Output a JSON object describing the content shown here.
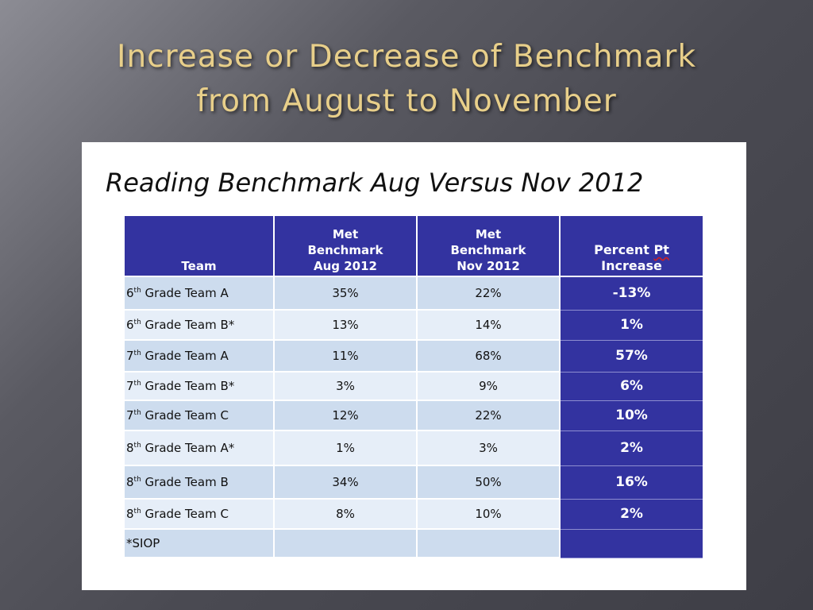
{
  "slide": {
    "title_line1": "Increase or Decrease of Benchmark",
    "title_line2": "from August to November"
  },
  "card": {
    "title": "Reading Benchmark Aug Versus Nov 2012"
  },
  "table": {
    "headers": {
      "team": "Team",
      "aug_line1": "Met",
      "aug_line2": "Benchmark",
      "aug_line3": "Aug 2012",
      "nov_line1": "Met",
      "nov_line2": "Benchmark",
      "nov_line3": "Nov 2012",
      "pct_line1_a": "Percent ",
      "pct_line1_b": "Pt",
      "pct_line2": "Increase"
    },
    "rows": [
      {
        "grade": "6",
        "sup": "th",
        "team": " Grade Team A",
        "aug": "35%",
        "nov": "22%",
        "pct": "-13%"
      },
      {
        "grade": "6",
        "sup": "th",
        "team": " Grade Team B*",
        "aug": "13%",
        "nov": "14%",
        "pct": "1%"
      },
      {
        "grade": "7",
        "sup": "th",
        "team": " Grade Team A",
        "aug": "11%",
        "nov": "68%",
        "pct": "57%"
      },
      {
        "grade": "7",
        "sup": "th",
        "team": " Grade Team B*",
        "aug": "3%",
        "nov": "9%",
        "pct": "6%"
      },
      {
        "grade": "7",
        "sup": "th",
        "team": " Grade Team C",
        "aug": "12%",
        "nov": "22%",
        "pct": "10%"
      },
      {
        "grade": "8",
        "sup": "th",
        "team": " Grade Team A*",
        "aug": "1%",
        "nov": "3%",
        "pct": "2%"
      },
      {
        "grade": "8",
        "sup": "th",
        "team": " Grade Team B",
        "aug": "34%",
        "nov": "50%",
        "pct": "16%"
      },
      {
        "grade": "8",
        "sup": "th",
        "team": " Grade Team C",
        "aug": "8%",
        "nov": "10%",
        "pct": "2%"
      }
    ],
    "footnote": "*SIOP"
  },
  "colors": {
    "title_gold": "#e8cf8a",
    "header_blue": "#3333a0",
    "row_light": "#cddcee",
    "row_lighter": "#e6eef8"
  }
}
